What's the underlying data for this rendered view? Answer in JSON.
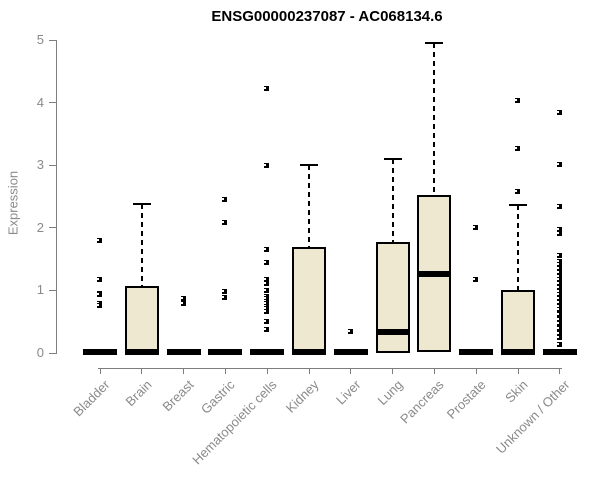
{
  "chart_data": {
    "type": "boxplot",
    "title": "ENSG00000237087 - AC068134.6",
    "ylabel": "Expression",
    "xlabel": "",
    "ylim": [
      0,
      5
    ],
    "yticks": [
      0,
      1,
      2,
      3,
      4,
      5
    ],
    "grid": false,
    "legend": false,
    "x_label_rotation_deg": 45,
    "categories": [
      "Bladder",
      "Brain",
      "Breast",
      "Gastric",
      "Hematopoietic cells",
      "Kidney",
      "Liver",
      "Lung",
      "Pancreas",
      "Prostate",
      "Skin",
      "Unknown / Other"
    ],
    "boxes": [
      {
        "category": "Bladder",
        "q1": 0,
        "median": 0,
        "q3": 0,
        "whisker_low": 0,
        "whisker_high": 0,
        "outliers": [
          1.79,
          1.16,
          0.95,
          0.92,
          0.78,
          0.75
        ]
      },
      {
        "category": "Brain",
        "q1": 0,
        "median": 0.02,
        "q3": 1.07,
        "whisker_low": 0,
        "whisker_high": 2.38,
        "outliers": []
      },
      {
        "category": "Breast",
        "q1": 0,
        "median": 0,
        "q3": 0,
        "whisker_low": 0,
        "whisker_high": 0,
        "outliers": [
          0.86,
          0.79
        ]
      },
      {
        "category": "Gastric",
        "q1": 0,
        "median": 0,
        "q3": 0,
        "whisker_low": 0,
        "whisker_high": 0,
        "outliers": [
          2.45,
          2.07,
          0.98,
          0.88
        ]
      },
      {
        "category": "Hematopoietic cells",
        "q1": 0,
        "median": 0,
        "q3": 0,
        "whisker_low": 0,
        "whisker_high": 0,
        "outliers": [
          4.21,
          2.98,
          1.65,
          1.43,
          1.17,
          1.1,
          0.99,
          0.9,
          0.86,
          0.82,
          0.78,
          0.74,
          0.7,
          0.66,
          0.5,
          0.37
        ]
      },
      {
        "category": "Kidney",
        "q1": 0,
        "median": 0.02,
        "q3": 1.7,
        "whisker_low": 0,
        "whisker_high": 3.0,
        "outliers": []
      },
      {
        "category": "Liver",
        "q1": 0,
        "median": 0,
        "q3": 0,
        "whisker_low": 0,
        "whisker_high": 0,
        "outliers": [
          0.34
        ]
      },
      {
        "category": "Lung",
        "q1": 0,
        "median": 0.33,
        "q3": 1.78,
        "whisker_low": 0,
        "whisker_high": 3.1,
        "outliers": []
      },
      {
        "category": "Pancreas",
        "q1": 0.02,
        "median": 1.26,
        "q3": 2.53,
        "whisker_low": 0.02,
        "whisker_high": 4.96,
        "outliers": []
      },
      {
        "category": "Prostate",
        "q1": 0,
        "median": 0,
        "q3": 0,
        "whisker_low": 0,
        "whisker_high": 0,
        "outliers": [
          2.0,
          1.17
        ]
      },
      {
        "category": "Skin",
        "q1": 0,
        "median": 0.02,
        "q3": 1.01,
        "whisker_low": 0,
        "whisker_high": 2.36,
        "outliers": [
          4.03,
          3.26,
          2.57
        ]
      },
      {
        "category": "Unknown / Other",
        "q1": 0,
        "median": 0,
        "q3": 0,
        "whisker_low": 0,
        "whisker_high": 0,
        "outliers": [
          3.84,
          3.0,
          2.34,
          1.96,
          1.9,
          1.55,
          1.46,
          1.4,
          1.34,
          1.28,
          1.22,
          1.16,
          1.1,
          1.04,
          0.98,
          0.92,
          0.86,
          0.8,
          0.74,
          0.68,
          0.6,
          0.52,
          0.47,
          0.38,
          0.3,
          0.24,
          0.13
        ]
      }
    ],
    "colors": {
      "box_fill": "#EDE8CF",
      "box_border": "#000000",
      "median": "#000000",
      "whisker": "#000000",
      "outlier": "#000000",
      "axis": "#7E7E7E",
      "tick_label": "#8A8A8A",
      "title": "#000000",
      "background": "#FFFFFF"
    }
  }
}
